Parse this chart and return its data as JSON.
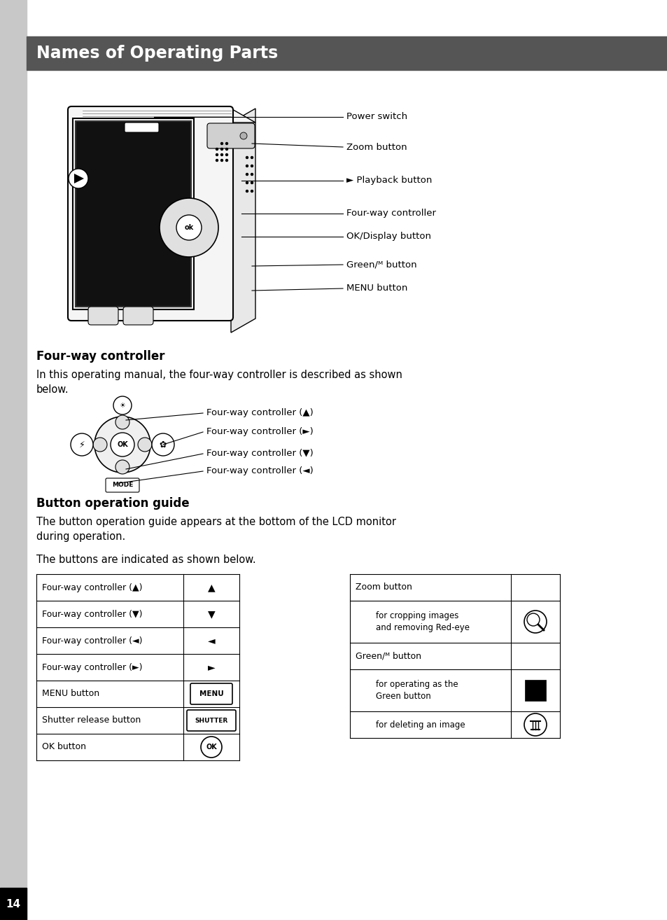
{
  "page_bg": "#ffffff",
  "sidebar_color": "#c8c8c8",
  "header_bg": "#555555",
  "header_text": "Names of Operating Parts",
  "header_text_color": "#ffffff",
  "fourway_title": "Four-way controller",
  "fourway_intro": "In this operating manual, the four-way controller is described as shown\nbelow.",
  "button_guide_title": "Button operation guide",
  "button_guide_text1": "The button operation guide appears at the bottom of the LCD monitor\nduring operation.",
  "button_guide_text2": "The buttons are indicated as shown below.",
  "left_table_rows": [
    {
      "label": "Four-way controller (▲)",
      "icon": "▲"
    },
    {
      "label": "Four-way controller (▼)",
      "icon": "▼"
    },
    {
      "label": "Four-way controller (◄)",
      "icon": "◄"
    },
    {
      "label": "Four-way controller (►)",
      "icon": "►"
    },
    {
      "label": "MENU button",
      "icon": "MENU"
    },
    {
      "label": "Shutter release button",
      "icon": "SHUTTER"
    },
    {
      "label": "OK button",
      "icon": "OK"
    }
  ],
  "camera_labels": [
    {
      "text": "Power switch"
    },
    {
      "text": "Zoom button"
    },
    {
      "text": "► Playback button"
    },
    {
      "text": "Four-way controller"
    },
    {
      "text": "OK/Display button"
    },
    {
      "text": "Green/ᴹ button"
    },
    {
      "text": "MENU button"
    }
  ],
  "fourway_labels": [
    "Four-way controller (▲)",
    "Four-way controller (►)",
    "Four-way controller (▼)",
    "Four-way controller (◄)"
  ],
  "page_number": "14"
}
